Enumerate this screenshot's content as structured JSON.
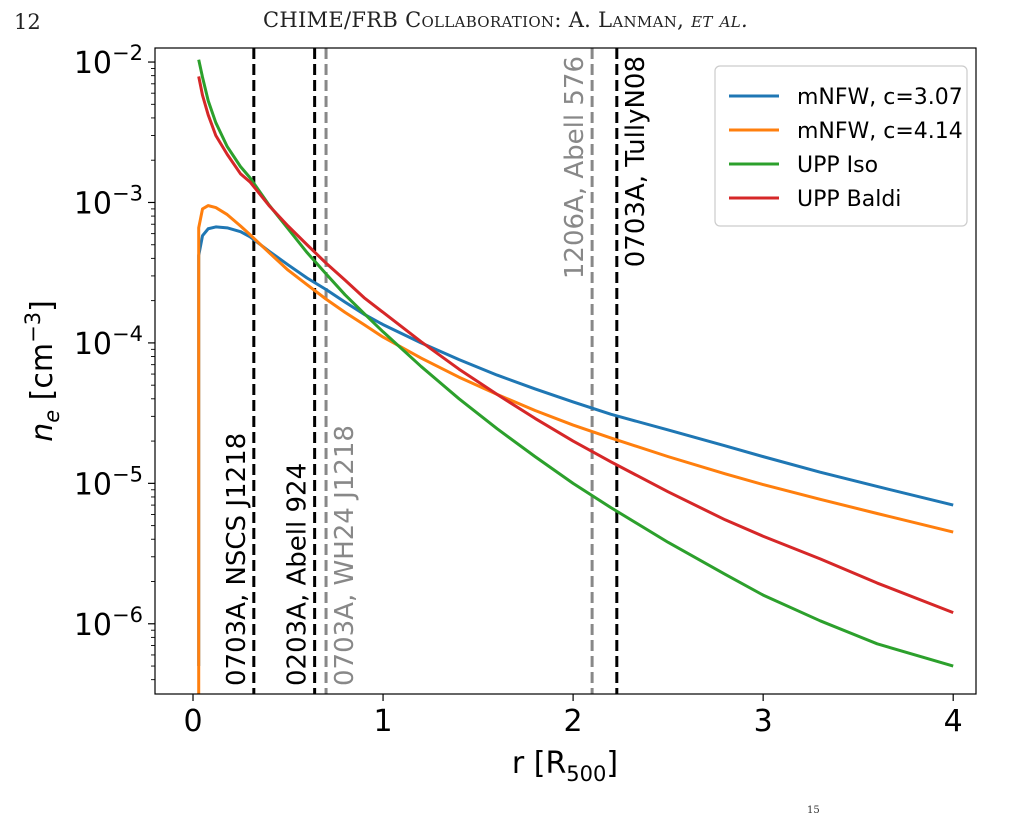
{
  "page": {
    "page_number": "12",
    "header_main": "CHIME/FRB Collaboration: A. Lanman, ",
    "header_etal": "et al.",
    "footer_fragment": "15"
  },
  "chart_data": {
    "type": "line",
    "xlabel_main": "r [R",
    "xlabel_sub": "500",
    "xlabel_end": "]",
    "ylabel_n": "n",
    "ylabel_sub": "e",
    "ylabel_unit": " [cm",
    "ylabel_exp": "−3",
    "ylabel_end": "]",
    "xlim": [
      -0.2,
      4.12
    ],
    "ylim_log10": [
      -6.5,
      -1.9
    ],
    "y_scale": "log",
    "xticks": [
      0,
      1,
      2,
      3,
      4
    ],
    "xtick_labels": [
      "0",
      "1",
      "2",
      "3",
      "4"
    ],
    "ytick_exponents": [
      -2,
      -3,
      -4,
      -5,
      -6
    ],
    "ytick_base": "10",
    "ytick_labels": [
      "−2",
      "−3",
      "−4",
      "−5",
      "−6"
    ],
    "legend_position": "top-right",
    "series": [
      {
        "name": "mNFW, c=3.07",
        "color": "#1f77b4",
        "x": [
          0.03,
          0.03,
          0.05,
          0.08,
          0.12,
          0.18,
          0.25,
          0.3,
          0.4,
          0.5,
          0.6,
          0.7,
          0.8,
          0.9,
          1.0,
          1.2,
          1.4,
          1.6,
          1.8,
          2.0,
          2.2,
          2.5,
          2.8,
          3.0,
          3.3,
          3.6,
          4.0
        ],
        "y": [
          5e-07,
          0.00042,
          0.00058,
          0.00065,
          0.00067,
          0.00066,
          0.00062,
          0.00057,
          0.00045,
          0.00036,
          0.00029,
          0.00024,
          0.000195,
          0.00016,
          0.000135,
          0.0001,
          7.6e-05,
          5.9e-05,
          4.7e-05,
          3.8e-05,
          3.1e-05,
          2.4e-05,
          1.85e-05,
          1.55e-05,
          1.2e-05,
          9.5e-06,
          7e-06
        ]
      },
      {
        "name": "mNFW, c=4.14",
        "color": "#ff7f0e",
        "x": [
          0.03,
          0.03,
          0.05,
          0.08,
          0.12,
          0.18,
          0.25,
          0.3,
          0.4,
          0.5,
          0.6,
          0.7,
          0.8,
          0.9,
          1.0,
          1.2,
          1.4,
          1.6,
          1.8,
          2.0,
          2.2,
          2.5,
          2.8,
          3.0,
          3.3,
          3.6,
          4.0
        ],
        "y": [
          3e-07,
          0.00066,
          0.0009,
          0.00095,
          0.00092,
          0.00082,
          0.00068,
          0.00059,
          0.00044,
          0.00033,
          0.00026,
          0.000205,
          0.000165,
          0.000135,
          0.00011,
          7.8e-05,
          5.7e-05,
          4.3e-05,
          3.3e-05,
          2.6e-05,
          2.1e-05,
          1.55e-05,
          1.17e-05,
          9.8e-06,
          7.7e-06,
          6.1e-06,
          4.5e-06
        ]
      },
      {
        "name": "UPP Iso",
        "color": "#2ca02c",
        "x": [
          0.03,
          0.05,
          0.08,
          0.12,
          0.18,
          0.25,
          0.3,
          0.4,
          0.5,
          0.6,
          0.7,
          0.8,
          0.9,
          1.0,
          1.2,
          1.4,
          1.6,
          1.8,
          2.0,
          2.2,
          2.5,
          2.8,
          3.0,
          3.3,
          3.6,
          4.0
        ],
        "y": [
          0.0104,
          0.0078,
          0.0053,
          0.0037,
          0.0025,
          0.0018,
          0.0015,
          0.00096,
          0.00065,
          0.00044,
          0.00031,
          0.00022,
          0.000162,
          0.00012,
          6.8e-05,
          4e-05,
          2.45e-05,
          1.55e-05,
          1e-05,
          6.7e-06,
          3.8e-06,
          2.25e-06,
          1.6e-06,
          1.05e-06,
          7.2e-07,
          5e-07
        ]
      },
      {
        "name": "UPP Baldi",
        "color": "#d62728",
        "x": [
          0.03,
          0.05,
          0.08,
          0.12,
          0.18,
          0.25,
          0.3,
          0.4,
          0.5,
          0.6,
          0.7,
          0.8,
          0.9,
          1.0,
          1.2,
          1.4,
          1.6,
          1.8,
          2.0,
          2.2,
          2.5,
          2.8,
          3.0,
          3.3,
          3.6,
          4.0
        ],
        "y": [
          0.0079,
          0.0058,
          0.0042,
          0.003,
          0.0022,
          0.0016,
          0.0014,
          0.00095,
          0.00068,
          0.0005,
          0.00037,
          0.00028,
          0.00021,
          0.000165,
          0.000102,
          6.5e-05,
          4.3e-05,
          2.9e-05,
          2e-05,
          1.42e-05,
          8.7e-06,
          5.5e-06,
          4.2e-06,
          2.9e-06,
          1.95e-06,
          1.2e-06
        ]
      }
    ],
    "vlines": [
      {
        "x": 0.32,
        "label": "0703A, NSCS J1218",
        "color": "#000000",
        "side": "left",
        "label_pos": "bottom"
      },
      {
        "x": 0.64,
        "label": "0203A, Abell 924",
        "color": "#000000",
        "side": "left",
        "label_pos": "bottom"
      },
      {
        "x": 0.7,
        "label": "0703A, WH24 J1218",
        "color": "#888888",
        "side": "right",
        "label_pos": "bottom"
      },
      {
        "x": 2.1,
        "label": "1206A, Abell 576",
        "color": "#888888",
        "side": "left",
        "label_pos": "top"
      },
      {
        "x": 2.23,
        "label": "0703A, TullyN08",
        "color": "#000000",
        "side": "right",
        "label_pos": "top"
      }
    ]
  }
}
